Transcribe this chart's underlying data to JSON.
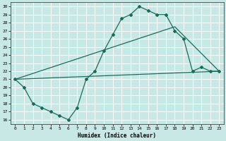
{
  "title": "",
  "xlabel": "Humidex (Indice chaleur)",
  "bg_color": "#c8e8e5",
  "grid_color": "#ffffff",
  "line_color": "#1a6b5a",
  "xlim": [
    -0.5,
    23.5
  ],
  "ylim": [
    15.5,
    30.5
  ],
  "xticks": [
    0,
    1,
    2,
    3,
    4,
    5,
    6,
    7,
    8,
    9,
    10,
    11,
    12,
    13,
    14,
    15,
    16,
    17,
    18,
    19,
    20,
    21,
    22,
    23
  ],
  "yticks": [
    16,
    17,
    18,
    19,
    20,
    21,
    22,
    23,
    24,
    25,
    26,
    27,
    28,
    29,
    30
  ],
  "line1_x": [
    0,
    1,
    2,
    3,
    4,
    5,
    6,
    7,
    8,
    9,
    10,
    11,
    12,
    13,
    14,
    15,
    16,
    17,
    18,
    19,
    20,
    21,
    22,
    23
  ],
  "line1_y": [
    21.0,
    20.0,
    18.0,
    17.5,
    17.0,
    16.5,
    16.0,
    17.5,
    21.0,
    22.0,
    24.5,
    26.5,
    28.5,
    29.0,
    30.0,
    29.5,
    29.0,
    29.0,
    27.0,
    26.0,
    22.0,
    22.5,
    22.0,
    22.0
  ],
  "line2_x": [
    0,
    23
  ],
  "line2_y": [
    21.0,
    22.0
  ],
  "line3_x": [
    0,
    18,
    23
  ],
  "line3_y": [
    21.0,
    27.5,
    22.0
  ]
}
